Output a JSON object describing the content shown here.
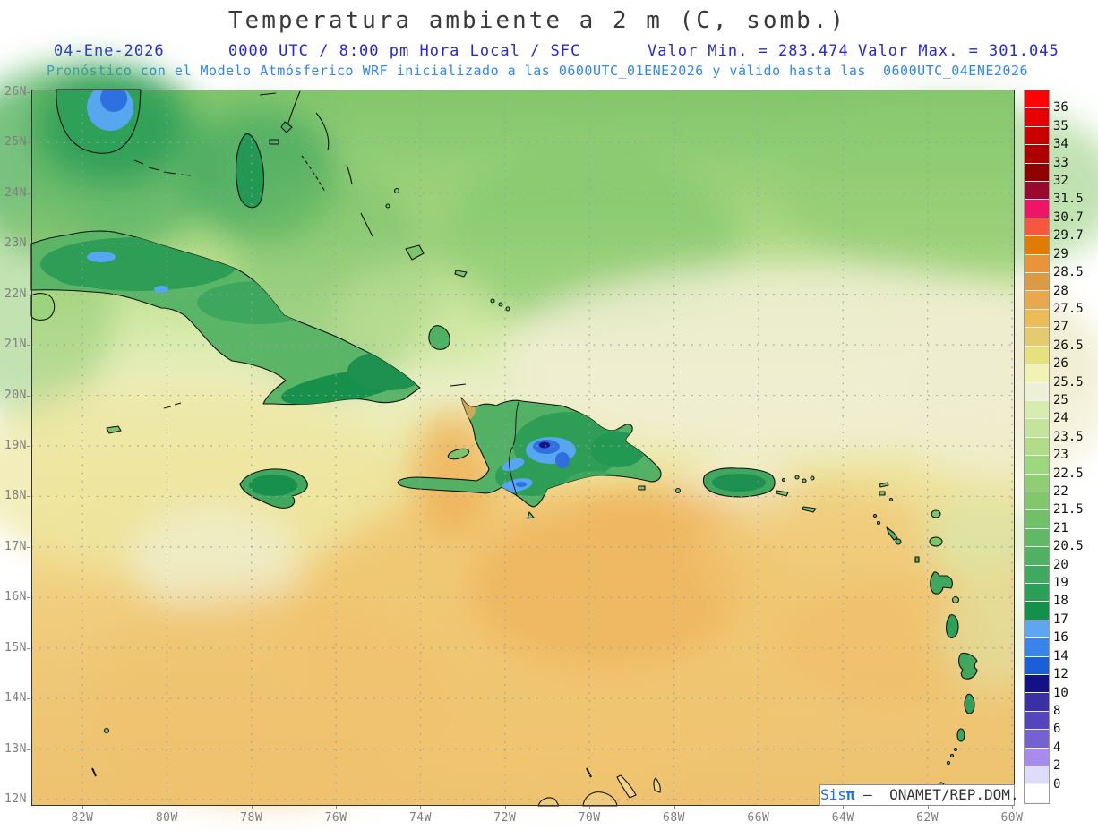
{
  "header": {
    "title": "Temperatura ambiente a 2 m (C, somb.)",
    "date": "04-Ene-2026",
    "time_info": "0000 UTC / 8:00 pm Hora Local / SFC",
    "min_label": "Valor Min. = 283.474",
    "max_label": "Valor Max. = 301.045",
    "forecast_line": "Pronóstico con el Modelo Atmósferico WRF inicializado a las 0600UTC_01ENE2026 y válido hasta las  0600UTC_04ENE2026"
  },
  "axes": {
    "lat_labels": [
      "26N",
      "25N",
      "24N",
      "23N",
      "22N",
      "21N",
      "20N",
      "19N",
      "18N",
      "17N",
      "16N",
      "15N",
      "14N",
      "13N",
      "12N"
    ],
    "lon_labels": [
      "82W",
      "80W",
      "78W",
      "76W",
      "74W",
      "72W",
      "70W",
      "68W",
      "66W",
      "64W",
      "62W",
      "60W"
    ]
  },
  "colorbar": {
    "labels": [
      "36",
      "35",
      "34",
      "33",
      "32",
      "31.5",
      "30.7",
      "29.7",
      "29",
      "28.5",
      "28",
      "27.5",
      "27",
      "26.5",
      "26",
      "25.5",
      "25",
      "24",
      "23.5",
      "23",
      "22.5",
      "22",
      "21.5",
      "21",
      "20.5",
      "20",
      "19",
      "18",
      "17",
      "16",
      "14",
      "12",
      "10",
      "8",
      "6",
      "4",
      "2",
      "0"
    ],
    "colors": [
      "#fb0404",
      "#e60000",
      "#ca0000",
      "#ad0000",
      "#8f0000",
      "#99092e",
      "#ee1566",
      "#f7573f",
      "#e07b04",
      "#e9943a",
      "#dd9a45",
      "#e8a84e",
      "#ecbc58",
      "#e5cb70",
      "#e7e07e",
      "#f0f3b2",
      "#edf0d8",
      "#d8ecb0",
      "#c3e49a",
      "#b2dc88",
      "#9cd97c",
      "#8fce72",
      "#80c86b",
      "#70c067",
      "#60b965",
      "#50b164",
      "#3fa960",
      "#2b9f58",
      "#13914a",
      "#5ca7f0",
      "#3884ea",
      "#1a5fd6",
      "#131183",
      "#3a2fa3",
      "#5445bc",
      "#7560d4",
      "#a78bef",
      "#dedcf8",
      "#ffffff"
    ]
  },
  "attribution": {
    "brand": "Sis",
    "pi": "π",
    "rest": " –  ONAMET/REP.DOM."
  },
  "colors": {
    "header_blue": "#2727d4",
    "forecast_blue": "#2e87f2",
    "axis_gray": "#7e7e7e"
  },
  "chart_data": {
    "type": "filled_contour_map",
    "title": "Temperatura ambiente a 2 m (C, somb.)",
    "variable": "air temperature at 2 m",
    "units": "C",
    "valid_date": "04-Ene-2026",
    "valid_time": "0000 UTC / 8:00 pm Hora Local / SFC",
    "value_min": 283.474,
    "value_max": 301.045,
    "model": "WRF",
    "init": "0600UTC_01ENE2026",
    "valid_until": "0600UTC_04ENE2026",
    "lon_range": [
      "82W",
      "60W"
    ],
    "lat_range": [
      "12N",
      "26N"
    ],
    "grid": "dotted, 2 deg lon x 1 deg lat",
    "legend_position": "right",
    "levels_c": [
      0,
      2,
      4,
      6,
      8,
      10,
      12,
      14,
      16,
      17,
      18,
      19,
      20,
      20.5,
      21,
      21.5,
      22,
      22.5,
      23,
      23.5,
      24,
      25,
      25.5,
      26,
      26.5,
      27,
      27.5,
      28,
      28.5,
      29,
      29.7,
      30.7,
      31.5,
      32,
      33,
      34,
      35,
      36
    ]
  }
}
